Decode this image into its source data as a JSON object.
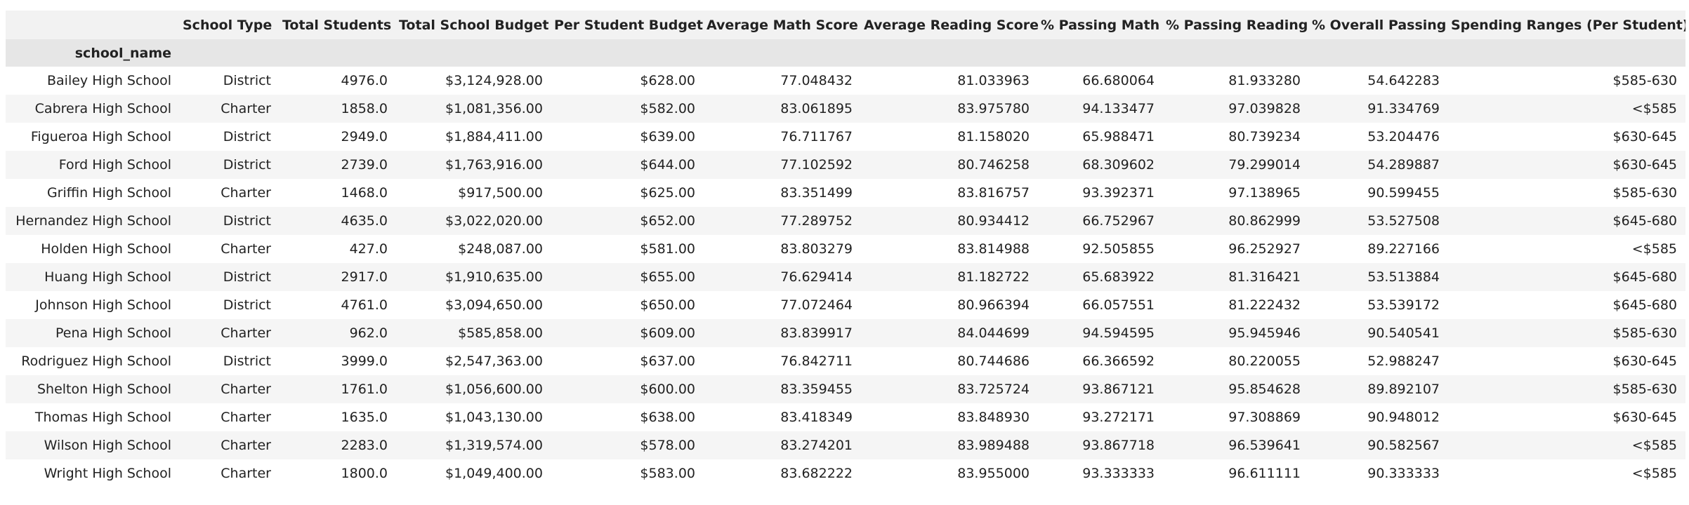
{
  "table": {
    "columns": [
      "School Type",
      "Total Students",
      "Total School Budget",
      "Per Student Budget",
      "Average Math Score",
      "Average Reading Score",
      "% Passing Math",
      "% Passing Reading",
      "% Overall Passing",
      "Spending Ranges (Per Student)"
    ],
    "index_name": "school_name",
    "rows": [
      [
        "Bailey High School",
        "District",
        "4976.0",
        "$3,124,928.00",
        "$628.00",
        "77.048432",
        "81.033963",
        "66.680064",
        "81.933280",
        "54.642283",
        "$585-630"
      ],
      [
        "Cabrera High School",
        "Charter",
        "1858.0",
        "$1,081,356.00",
        "$582.00",
        "83.061895",
        "83.975780",
        "94.133477",
        "97.039828",
        "91.334769",
        "<$585"
      ],
      [
        "Figueroa High School",
        "District",
        "2949.0",
        "$1,884,411.00",
        "$639.00",
        "76.711767",
        "81.158020",
        "65.988471",
        "80.739234",
        "53.204476",
        "$630-645"
      ],
      [
        "Ford High School",
        "District",
        "2739.0",
        "$1,763,916.00",
        "$644.00",
        "77.102592",
        "80.746258",
        "68.309602",
        "79.299014",
        "54.289887",
        "$630-645"
      ],
      [
        "Griffin High School",
        "Charter",
        "1468.0",
        "$917,500.00",
        "$625.00",
        "83.351499",
        "83.816757",
        "93.392371",
        "97.138965",
        "90.599455",
        "$585-630"
      ],
      [
        "Hernandez High School",
        "District",
        "4635.0",
        "$3,022,020.00",
        "$652.00",
        "77.289752",
        "80.934412",
        "66.752967",
        "80.862999",
        "53.527508",
        "$645-680"
      ],
      [
        "Holden High School",
        "Charter",
        "427.0",
        "$248,087.00",
        "$581.00",
        "83.803279",
        "83.814988",
        "92.505855",
        "96.252927",
        "89.227166",
        "<$585"
      ],
      [
        "Huang High School",
        "District",
        "2917.0",
        "$1,910,635.00",
        "$655.00",
        "76.629414",
        "81.182722",
        "65.683922",
        "81.316421",
        "53.513884",
        "$645-680"
      ],
      [
        "Johnson High School",
        "District",
        "4761.0",
        "$3,094,650.00",
        "$650.00",
        "77.072464",
        "80.966394",
        "66.057551",
        "81.222432",
        "53.539172",
        "$645-680"
      ],
      [
        "Pena High School",
        "Charter",
        "962.0",
        "$585,858.00",
        "$609.00",
        "83.839917",
        "84.044699",
        "94.594595",
        "95.945946",
        "90.540541",
        "$585-630"
      ],
      [
        "Rodriguez High School",
        "District",
        "3999.0",
        "$2,547,363.00",
        "$637.00",
        "76.842711",
        "80.744686",
        "66.366592",
        "80.220055",
        "52.988247",
        "$630-645"
      ],
      [
        "Shelton High School",
        "Charter",
        "1761.0",
        "$1,056,600.00",
        "$600.00",
        "83.359455",
        "83.725724",
        "93.867121",
        "95.854628",
        "89.892107",
        "$585-630"
      ],
      [
        "Thomas High School",
        "Charter",
        "1635.0",
        "$1,043,130.00",
        "$638.00",
        "83.418349",
        "83.848930",
        "93.272171",
        "97.308869",
        "90.948012",
        "$630-645"
      ],
      [
        "Wilson High School",
        "Charter",
        "2283.0",
        "$1,319,574.00",
        "$578.00",
        "83.274201",
        "83.989488",
        "93.867718",
        "96.539641",
        "90.582567",
        "<$585"
      ],
      [
        "Wright High School",
        "Charter",
        "1800.0",
        "$1,049,400.00",
        "$583.00",
        "83.682222",
        "83.955000",
        "93.333333",
        "96.611111",
        "90.333333",
        "<$585"
      ]
    ]
  }
}
